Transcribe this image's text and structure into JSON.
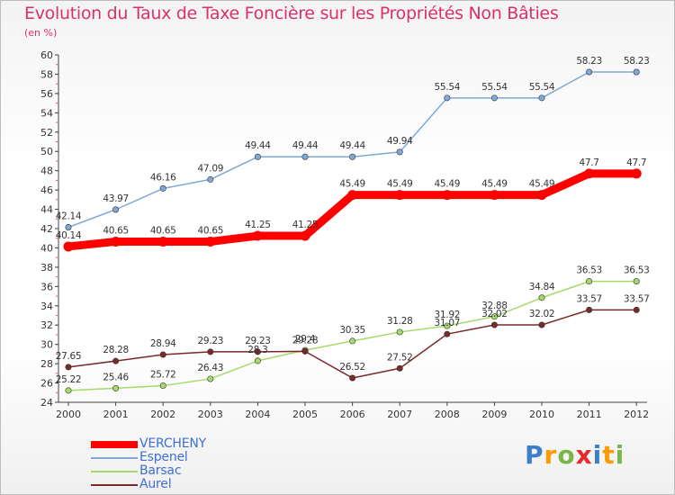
{
  "title": "Evolution du Taux de Taxe Foncière sur les Propriétés Non Bâties",
  "subtitle": "(en %)",
  "logo_text": "Proxiti",
  "chart_data": {
    "type": "line",
    "x": [
      "2000",
      "2001",
      "2002",
      "2003",
      "2004",
      "2005",
      "2006",
      "2007",
      "2008",
      "2009",
      "2010",
      "2011",
      "2012"
    ],
    "ylim": [
      24,
      60
    ],
    "yticks": [
      24,
      26,
      28,
      30,
      32,
      34,
      36,
      38,
      40,
      42,
      44,
      46,
      48,
      50,
      52,
      54,
      56,
      58,
      60
    ],
    "grid": false,
    "legend_position": "bottom-left",
    "series": [
      {
        "name": "VERCHENY",
        "color": "#ff0000",
        "values": [
          40.14,
          40.65,
          40.65,
          40.65,
          41.25,
          41.25,
          45.49,
          45.49,
          45.49,
          45.49,
          45.49,
          47.7,
          47.7
        ]
      },
      {
        "name": "Espenel",
        "color": "#7fa9d6",
        "values": [
          42.14,
          43.97,
          46.16,
          47.09,
          49.44,
          49.44,
          49.44,
          49.94,
          55.54,
          55.54,
          55.54,
          58.23,
          58.23
        ]
      },
      {
        "name": "Barsac",
        "color": "#a6d96a",
        "values": [
          25.22,
          25.46,
          25.72,
          26.43,
          28.3,
          29.4,
          30.35,
          31.28,
          31.92,
          32.88,
          34.84,
          36.53,
          36.53
        ]
      },
      {
        "name": "Aurel",
        "color": "#7a2a2a",
        "values": [
          27.65,
          28.28,
          28.94,
          29.23,
          29.23,
          29.28,
          26.52,
          27.52,
          31.07,
          32.02,
          32.02,
          33.57,
          33.57
        ]
      }
    ],
    "value_labels": [
      [
        "40.14",
        "40.65",
        "40.65",
        "40.65",
        "41.25",
        "41.25",
        "45.49",
        "45.49",
        "45.49",
        "45.49",
        "45.49",
        "47.7",
        "47.7"
      ],
      [
        "42.14",
        "43.97",
        "46.16",
        "47.09",
        "49.44",
        "49.44",
        "49.44",
        "49.94",
        "55.54",
        "55.54",
        "55.54",
        "58.23",
        "58.23"
      ],
      [
        "25.22",
        "25.46",
        "25.72",
        "26.43",
        "28.3",
        "29.4",
        "30.35",
        "31.28",
        "31.92",
        "32.88",
        "34.84",
        "36.53",
        "36.53"
      ],
      [
        "27.65",
        "28.28",
        "28.94",
        "29.23",
        "29.23",
        "29.28",
        "26.52",
        "27.52",
        "31.07",
        "32.02",
        "32.02",
        "33.57",
        "33.57"
      ]
    ]
  }
}
